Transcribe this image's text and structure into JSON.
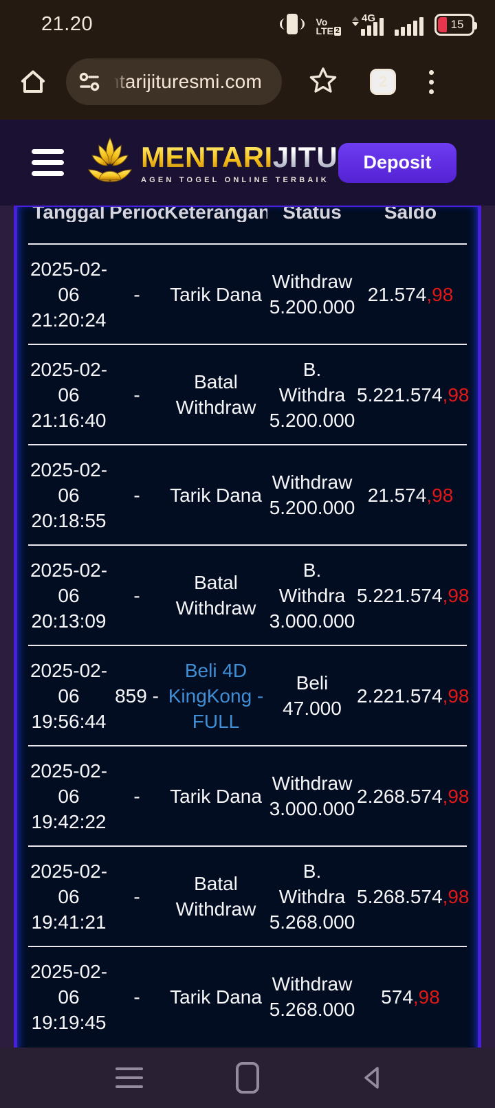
{
  "status_bar": {
    "time": "21.20",
    "volte_top": "Vo",
    "volte_bottom": "LTE",
    "volte_badge": "2",
    "network_type": "4G",
    "battery_level": "15"
  },
  "browser": {
    "url_text": "ntarijituresmi.com",
    "tab_count": "2"
  },
  "site_header": {
    "brand_primary": "MENTARI",
    "brand_secondary": "JITU",
    "tagline": "AGEN TOGEL ONLINE TERBAIK",
    "deposit_label": "Deposit"
  },
  "colors": {
    "accent_purple": "#5b2be0",
    "table_border_purple": "#4a1fd8",
    "link_blue": "#3f8fd6",
    "negative_red": "#e01818",
    "brand_gold": "#f5c518"
  },
  "table": {
    "columns": [
      "Tanggal",
      "Periode",
      "Keterangan",
      "Status",
      "Saldo"
    ],
    "rows": [
      {
        "tanggal": "2025-02-\n06\n21:20:24",
        "periode": "-",
        "keterangan": "Tarik Dana",
        "keterangan_link": false,
        "status": "Withdraw\n5.200.000",
        "saldo": "21.574",
        "saldo_cents": ",98"
      },
      {
        "tanggal": "2025-02-\n06\n21:16:40",
        "periode": "-",
        "keterangan": "Batal\nWithdraw",
        "keterangan_link": false,
        "status": "B.\nWithdra\n5.200.000",
        "saldo": "5.221.574",
        "saldo_cents": ",98"
      },
      {
        "tanggal": "2025-02-\n06\n20:18:55",
        "periode": "-",
        "keterangan": "Tarik Dana",
        "keterangan_link": false,
        "status": "Withdraw\n5.200.000",
        "saldo": "21.574",
        "saldo_cents": ",98"
      },
      {
        "tanggal": "2025-02-\n06\n20:13:09",
        "periode": "-",
        "keterangan": "Batal\nWithdraw",
        "keterangan_link": false,
        "status": "B.\nWithdra\n3.000.000",
        "saldo": "5.221.574",
        "saldo_cents": ",98"
      },
      {
        "tanggal": "2025-02-\n06\n19:56:44",
        "periode": "859 -",
        "keterangan": "Beli 4D\nKingKong -\nFULL",
        "keterangan_link": true,
        "status": "Beli\n47.000",
        "saldo": "2.221.574",
        "saldo_cents": ",98"
      },
      {
        "tanggal": "2025-02-\n06\n19:42:22",
        "periode": "-",
        "keterangan": "Tarik Dana",
        "keterangan_link": false,
        "status": "Withdraw\n3.000.000",
        "saldo": "2.268.574",
        "saldo_cents": ",98"
      },
      {
        "tanggal": "2025-02-\n06\n19:41:21",
        "periode": "-",
        "keterangan": "Batal\nWithdraw",
        "keterangan_link": false,
        "status": "B.\nWithdra\n5.268.000",
        "saldo": "5.268.574",
        "saldo_cents": ",98"
      },
      {
        "tanggal": "2025-02-\n06\n19:19:45",
        "periode": "-",
        "keterangan": "Tarik Dana",
        "keterangan_link": false,
        "status": "Withdraw\n5.268.000",
        "saldo": "574",
        "saldo_cents": ",98"
      }
    ]
  }
}
